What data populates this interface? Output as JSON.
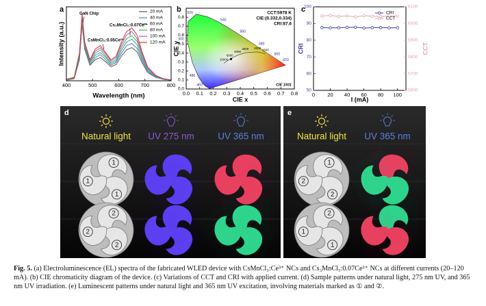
{
  "chart_data": [
    {
      "type": "line",
      "panel": "a",
      "xlabel": "Wavelength (nm)",
      "ylabel": "Intensity (a.u.)",
      "xlim": [
        400,
        800
      ],
      "xticks": [
        400,
        500,
        600,
        700,
        800
      ],
      "ylim": [
        0,
        1.05
      ],
      "annotations": [
        "GaN Chip",
        "CsMnCl₃:0.05Ce³⁺",
        "Cs₃MnCl₅:0.07Ce³⁺"
      ],
      "x": [
        400,
        430,
        450,
        460,
        470,
        490,
        510,
        530,
        550,
        570,
        590,
        610,
        630,
        650,
        670,
        690,
        710,
        740,
        770,
        800
      ],
      "series": [
        {
          "name": "20 mA",
          "color": "#555555",
          "values": [
            0.01,
            0.03,
            0.3,
            0.8,
            0.45,
            0.22,
            0.3,
            0.33,
            0.27,
            0.2,
            0.23,
            0.35,
            0.44,
            0.47,
            0.41,
            0.25,
            0.12,
            0.05,
            0.02,
            0.01
          ]
        },
        {
          "name": "40 mA",
          "color": "#4f7fc0",
          "values": [
            0.01,
            0.04,
            0.32,
            0.83,
            0.47,
            0.24,
            0.33,
            0.37,
            0.3,
            0.22,
            0.26,
            0.39,
            0.5,
            0.53,
            0.46,
            0.28,
            0.14,
            0.05,
            0.02,
            0.01
          ]
        },
        {
          "name": "60 mA",
          "color": "#3aa0a0",
          "values": [
            0.01,
            0.04,
            0.34,
            0.86,
            0.49,
            0.26,
            0.36,
            0.4,
            0.33,
            0.24,
            0.28,
            0.43,
            0.55,
            0.59,
            0.51,
            0.31,
            0.15,
            0.06,
            0.02,
            0.01
          ]
        },
        {
          "name": "80 mA",
          "color": "#4caf50",
          "values": [
            0.02,
            0.04,
            0.36,
            0.89,
            0.51,
            0.27,
            0.39,
            0.44,
            0.35,
            0.26,
            0.3,
            0.47,
            0.6,
            0.64,
            0.56,
            0.34,
            0.17,
            0.07,
            0.03,
            0.01
          ]
        },
        {
          "name": "100 mA",
          "color": "#9b59b6",
          "values": [
            0.02,
            0.05,
            0.38,
            0.92,
            0.53,
            0.29,
            0.42,
            0.47,
            0.38,
            0.28,
            0.33,
            0.51,
            0.65,
            0.7,
            0.6,
            0.37,
            0.18,
            0.07,
            0.03,
            0.01
          ]
        },
        {
          "name": "120 mA",
          "color": "#e03030",
          "values": [
            0.02,
            0.05,
            0.4,
            0.95,
            0.55,
            0.3,
            0.45,
            0.5,
            0.4,
            0.3,
            0.35,
            0.55,
            0.7,
            0.75,
            0.65,
            0.4,
            0.2,
            0.08,
            0.03,
            0.01
          ]
        }
      ]
    },
    {
      "type": "cie",
      "panel": "b",
      "xlabel": "CIE x",
      "ylabel": "CIE y",
      "note": "CIE 1931",
      "info": [
        "CCT:5978 K",
        "CIE:(0.332,0.334)",
        "CRI:87.6"
      ],
      "xlim": [
        0,
        0.8
      ],
      "ylim": [
        0,
        0.9
      ],
      "xticks": [
        {
          "value": 0,
          "label": "0.0"
        },
        0.1,
        0.2,
        0.3,
        0.4,
        0.5,
        0.6,
        0.7,
        0.8
      ],
      "yticks": [
        {
          "value": 0,
          "label": "0.0"
        },
        0.1,
        0.2,
        0.3,
        0.4,
        0.5,
        0.6,
        0.7,
        0.8
      ],
      "locus": {
        "x": [
          0.1741,
          0.144,
          0.1241,
          0.0913,
          0.0454,
          0.0082,
          0.0139,
          0.0743,
          0.1547,
          0.2296,
          0.3016,
          0.3731,
          0.4441,
          0.5125,
          0.5752,
          0.627,
          0.6915,
          0.7347
        ],
        "y": [
          0.005,
          0.0297,
          0.0578,
          0.1327,
          0.295,
          0.5384,
          0.7502,
          0.8338,
          0.8059,
          0.7543,
          0.6923,
          0.6245,
          0.5547,
          0.4866,
          0.4242,
          0.3725,
          0.3083,
          0.2653
        ],
        "labels": [
          null,
          "460",
          null,
          "480",
          null,
          "500",
          null,
          "520",
          null,
          "540",
          null,
          "560",
          null,
          "580",
          null,
          "600",
          "620",
          null
        ]
      },
      "planckian": {
        "x": [
          0.279,
          0.322,
          0.38,
          0.437,
          0.527,
          0.586
        ],
        "y": [
          0.288,
          0.332,
          0.377,
          0.404,
          0.413,
          0.393
        ],
        "labels": [
          "10000",
          "6000",
          "4000",
          "3000",
          "2000",
          "1500"
        ]
      },
      "point": {
        "x": 0.332,
        "y": 0.334,
        "color": "#000000"
      }
    },
    {
      "type": "dual_line",
      "panel": "c",
      "xlabel": "I (mA)",
      "ylabel": "CRI",
      "y2label": "CCT",
      "xlim": [
        0,
        110
      ],
      "xticks": [
        0,
        20,
        40,
        60,
        80,
        100
      ],
      "ylim": [
        50,
        100
      ],
      "yticks": [
        50,
        60,
        70,
        80,
        90,
        100
      ],
      "y2lim": [
        5600,
        6100
      ],
      "y2ticks": [
        5600,
        5700,
        5800,
        5900,
        6000,
        6100
      ],
      "x": [
        10,
        20,
        30,
        40,
        50,
        60,
        70,
        80,
        90,
        100
      ],
      "series": [
        {
          "name": "CRI",
          "color": "#3b3b9a",
          "values": [
            87.6,
            87.4,
            87.5,
            87.7,
            87.8,
            87.3,
            87.5,
            87.6,
            87.4,
            87.5
          ]
        },
        {
          "name": "CCT",
          "axis": "y2",
          "color": "#e8a0b0",
          "values": [
            6045,
            6048,
            6043,
            6046,
            6040,
            6047,
            6044,
            6042,
            6046,
            6045
          ]
        }
      ]
    }
  ],
  "photos": [
    {
      "panel": "d",
      "columns": [
        {
          "title": "Natural light",
          "title_color": "#f3e24a",
          "icon": "sun",
          "natural": true,
          "numbers": [
            [
              "1",
              "1",
              "1"
            ],
            [
              "2",
              "2",
              "2"
            ]
          ]
        },
        {
          "title": "UV 275 nm",
          "title_color": "#8a5ad8",
          "icon": "bulb",
          "colors": [
            [
              "#5b3ff0",
              "#5b3ff0",
              "#5b3ff0"
            ],
            [
              "#5b3ff0",
              "#5b3ff0",
              "#5b3ff0"
            ]
          ]
        },
        {
          "title": "UV 365 nm",
          "title_color": "#5a7fe0",
          "icon": "bulb",
          "colors": [
            [
              "#e8405f",
              "#e8405f",
              "#e8405f"
            ],
            [
              "#2fd48c",
              "#2fd48c",
              "#2fd48c"
            ]
          ]
        }
      ]
    },
    {
      "panel": "e",
      "columns": [
        {
          "title": "Natural light",
          "title_color": "#f3e24a",
          "icon": "sun",
          "natural": true,
          "numbers": [
            [
              "1",
              "2",
              "2"
            ],
            [
              "2",
              "1",
              "1"
            ]
          ]
        },
        {
          "title": "UV 365 nm",
          "title_color": "#5a7fe0",
          "icon": "bulb",
          "colors": [
            [
              "#e8405f",
              "#2fd48c",
              "#2fd48c"
            ],
            [
              "#2fd48c",
              "#e8405f",
              "#e8405f"
            ]
          ]
        }
      ]
    }
  ],
  "caption": {
    "label": "Fig. 5.",
    "text": "(a) Electroluminescence (EL) spectra of the fabricated WLED device with CsMnCl₃:Ce³⁺ NCs and Cs₃MnCl₅:0.07Ce³⁺ NCs at different currents (20–120 mA). (b) CIE chromaticity diagram of the device. (c) Variations of CCT and CRI with applied current. (d) Sample patterns under natural light, 275 nm UV, and 365 nm UV irradiation. (e) Luminescent patterns under natural light and 365 nm UV excitation, involving materials marked as ① and ②."
  }
}
